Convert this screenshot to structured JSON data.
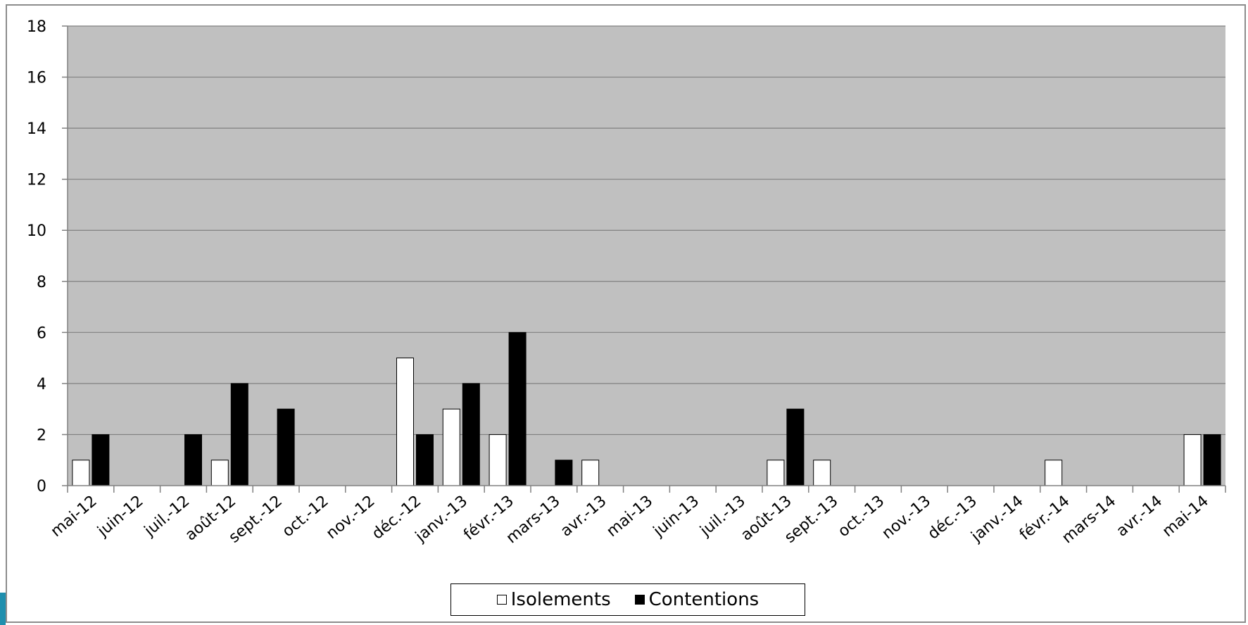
{
  "chart_data": {
    "type": "bar",
    "categories": [
      "mai-12",
      "juin-12",
      "juil.-12",
      "août-12",
      "sept.-12",
      "oct.-12",
      "nov.-12",
      "déc.-12",
      "janv.-13",
      "févr.-13",
      "mars-13",
      "avr.-13",
      "mai-13",
      "juin-13",
      "juil.-13",
      "août-13",
      "sept.-13",
      "oct.-13",
      "nov.-13",
      "déc.-13",
      "janv.-14",
      "févr.-14",
      "mars-14",
      "avr.-14",
      "mai-14"
    ],
    "series": [
      {
        "name": "Isolements",
        "color": "#ffffff",
        "values": [
          1,
          0,
          0,
          1,
          0,
          0,
          0,
          5,
          3,
          2,
          0,
          1,
          0,
          0,
          0,
          1,
          1,
          0,
          0,
          0,
          0,
          1,
          0,
          0,
          2
        ]
      },
      {
        "name": "Contentions",
        "color": "#000000",
        "values": [
          2,
          0,
          2,
          4,
          3,
          0,
          0,
          2,
          4,
          6,
          1,
          0,
          0,
          0,
          0,
          3,
          0,
          0,
          0,
          0,
          0,
          0,
          0,
          0,
          2
        ]
      }
    ],
    "yticks": [
      "0",
      "2",
      "4",
      "6",
      "8",
      "10",
      "12",
      "14",
      "16",
      "18"
    ],
    "ylim": [
      0,
      18
    ],
    "grid": true,
    "plot_background": "#c0c0c0",
    "legend": "bottom-center"
  }
}
